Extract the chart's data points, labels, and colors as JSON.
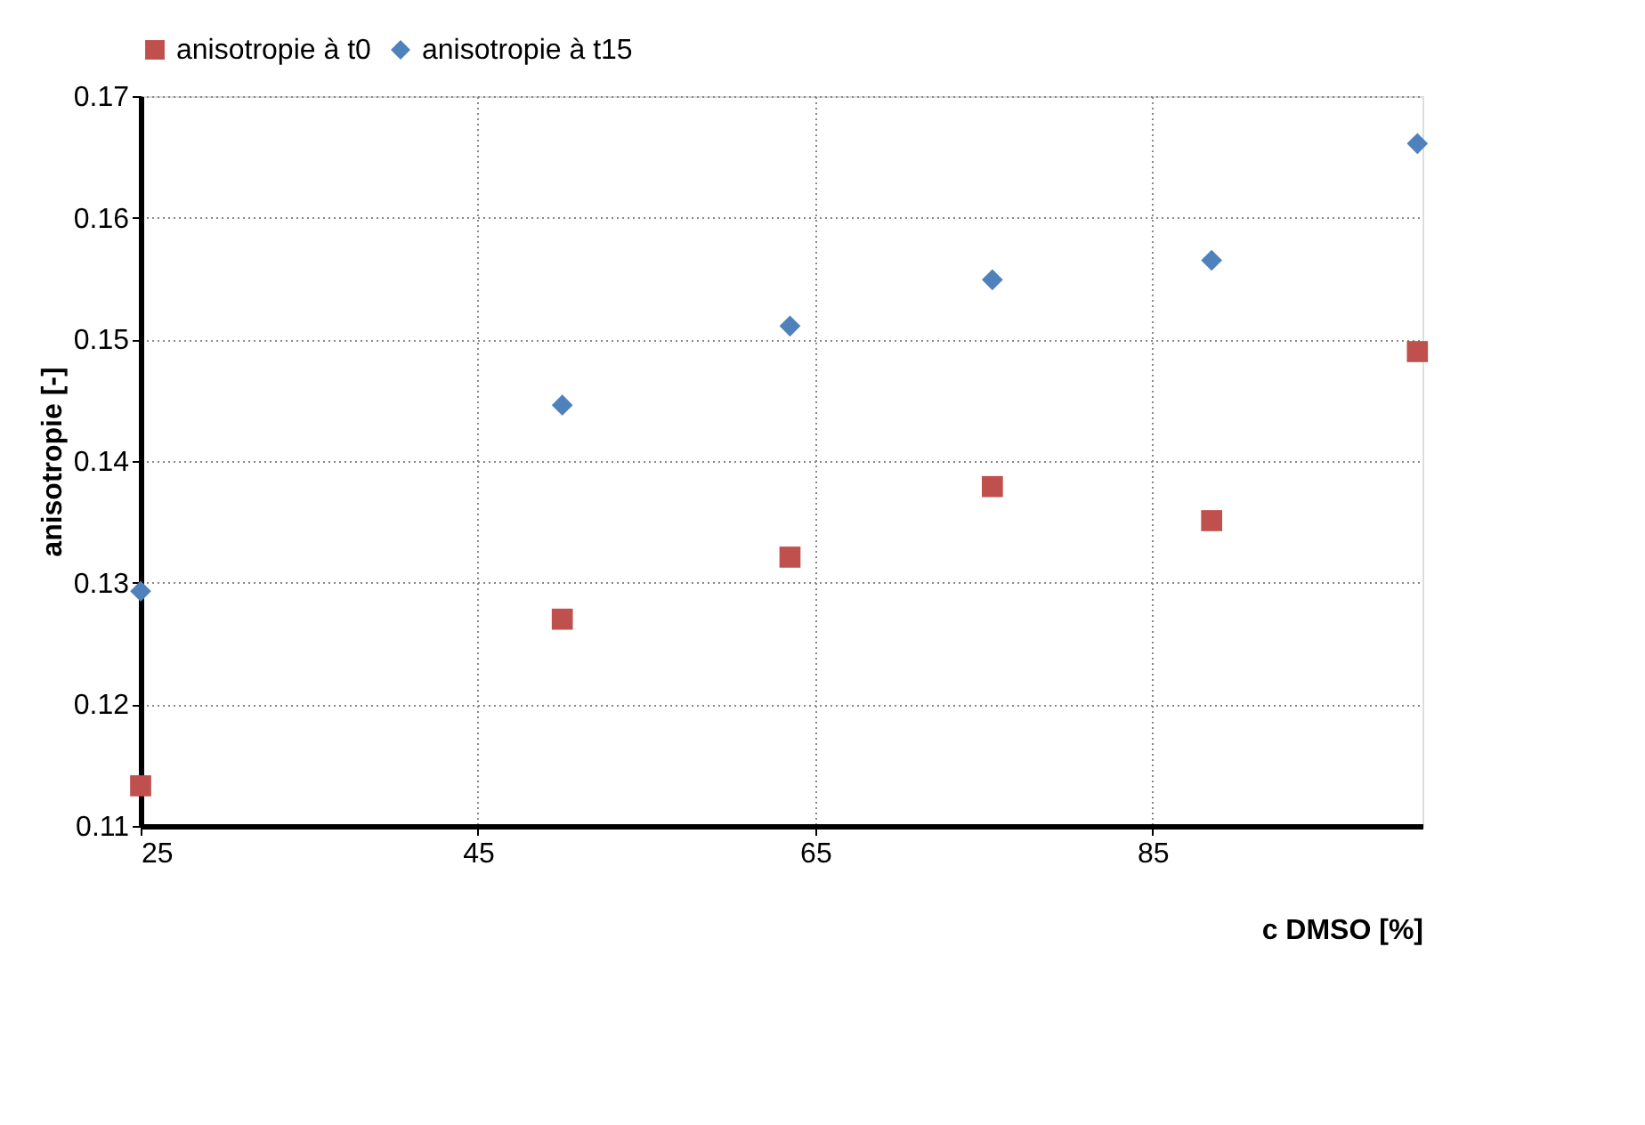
{
  "chart_data": {
    "type": "scatter",
    "xlabel": "c DMSO [%]",
    "ylabel": "anisotropie [-]",
    "xlim": [
      25,
      101
    ],
    "xticks": [
      25,
      45,
      65,
      85
    ],
    "ylim": [
      0.11,
      0.17
    ],
    "yticks": [
      0.11,
      0.12,
      0.13,
      0.14,
      0.15,
      0.16,
      0.17
    ],
    "grid": true,
    "legend": "top",
    "series": [
      {
        "name": "anisotropie à t0",
        "color": "#c0504d",
        "marker": "square",
        "x": [
          25,
          50,
          63.5,
          75.5,
          88.5,
          100.7
        ],
        "values": [
          0.1133,
          0.127,
          0.1321,
          0.1379,
          0.1351,
          0.149
        ]
      },
      {
        "name": "anisotropie à t15",
        "color": "#4f81bd",
        "marker": "diamond",
        "x": [
          25,
          50,
          63.5,
          75.5,
          88.5,
          100.7
        ],
        "values": [
          0.1293,
          0.1446,
          0.1511,
          0.1549,
          0.1565,
          0.1661
        ]
      }
    ]
  }
}
